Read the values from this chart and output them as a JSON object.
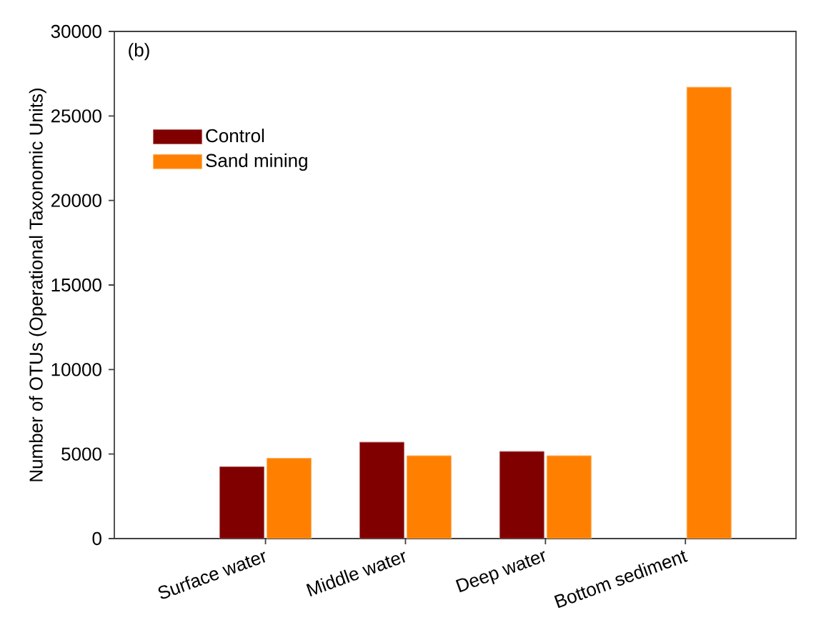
{
  "chart_data": {
    "type": "bar",
    "ylabel": "Number of OTUs (Operational Taxonomic Units)",
    "annotations": [
      "(b)"
    ],
    "categories": [
      "Surface water",
      "Middle water",
      "Deep water",
      "Bottom sediment"
    ],
    "series": [
      {
        "name": "Control",
        "color": "#800000",
        "values": [
          4250,
          5700,
          5150,
          null
        ]
      },
      {
        "name": "Sand mining",
        "color": "#ff8000",
        "values": [
          4750,
          4900,
          4900,
          26700
        ]
      }
    ],
    "ylim": [
      0,
      30000
    ],
    "yticks": [
      0,
      5000,
      10000,
      15000,
      20000,
      25000,
      30000
    ],
    "legend": "top left",
    "grid": false
  }
}
